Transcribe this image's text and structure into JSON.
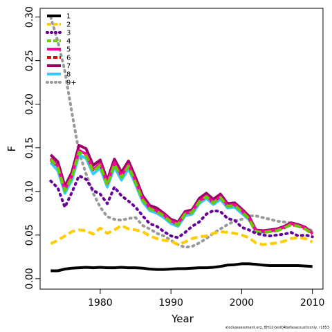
{
  "chart_data": {
    "type": "line",
    "xlabel": "Year",
    "ylabel": "F",
    "xlim": [
      1971.5,
      2011.5
    ],
    "ylim": [
      -0.012,
      0.31
    ],
    "x_ticks": [
      1980,
      1990,
      2000,
      2010
    ],
    "y_ticks": [
      0.0,
      0.05,
      0.1,
      0.15,
      0.2,
      0.25,
      0.3
    ],
    "y_tick_labels": [
      "0.00",
      "0.05",
      "0.10",
      "0.15",
      "0.20",
      "0.25",
      "0.30"
    ],
    "grid": false,
    "legend_position": "top-left",
    "x": [
      1973,
      1974,
      1975,
      1976,
      1977,
      1978,
      1979,
      1980,
      1981,
      1982,
      1983,
      1984,
      1985,
      1986,
      1987,
      1988,
      1989,
      1990,
      1991,
      1992,
      1993,
      1994,
      1995,
      1996,
      1997,
      1998,
      1999,
      2000,
      2001,
      2002,
      2003,
      2004,
      2005,
      2006,
      2007,
      2008,
      2009,
      2010
    ],
    "series": [
      {
        "name": "1",
        "color": "#000000",
        "dash": "solid",
        "values": [
          0.009,
          0.009,
          0.011,
          0.012,
          0.0125,
          0.013,
          0.0125,
          0.013,
          0.0125,
          0.0125,
          0.013,
          0.0125,
          0.0125,
          0.012,
          0.011,
          0.0105,
          0.0105,
          0.011,
          0.0115,
          0.0115,
          0.012,
          0.0125,
          0.0125,
          0.013,
          0.014,
          0.0155,
          0.016,
          0.017,
          0.017,
          0.0165,
          0.0155,
          0.015,
          0.015,
          0.015,
          0.015,
          0.015,
          0.0145,
          0.014
        ]
      },
      {
        "name": "2",
        "color": "#ffcc00",
        "dash": "dashed",
        "values": [
          0.04,
          0.044,
          0.049,
          0.054,
          0.056,
          0.055,
          0.051,
          0.058,
          0.052,
          0.056,
          0.061,
          0.057,
          0.056,
          0.054,
          0.049,
          0.046,
          0.044,
          0.043,
          0.039,
          0.042,
          0.046,
          0.048,
          0.049,
          0.052,
          0.054,
          0.053,
          0.052,
          0.05,
          0.047,
          0.041,
          0.039,
          0.04,
          0.041,
          0.043,
          0.046,
          0.047,
          0.046,
          0.042
        ]
      },
      {
        "name": "3",
        "color": "#660099",
        "dash": "dotted",
        "values": [
          0.112,
          0.104,
          0.082,
          0.099,
          0.118,
          0.114,
          0.101,
          0.097,
          0.086,
          0.105,
          0.095,
          0.089,
          0.082,
          0.072,
          0.063,
          0.06,
          0.054,
          0.049,
          0.047,
          0.053,
          0.06,
          0.065,
          0.074,
          0.078,
          0.077,
          0.069,
          0.067,
          0.059,
          0.056,
          0.052,
          0.05,
          0.049,
          0.05,
          0.051,
          0.053,
          0.049,
          0.05,
          0.048
        ]
      },
      {
        "name": "4",
        "color": "#66cc00",
        "dash": "dashed",
        "values": [
          0.137,
          0.127,
          0.101,
          0.116,
          0.145,
          0.141,
          0.123,
          0.13,
          0.107,
          0.131,
          0.116,
          0.129,
          0.11,
          0.09,
          0.08,
          0.077,
          0.072,
          0.065,
          0.062,
          0.074,
          0.076,
          0.088,
          0.094,
          0.087,
          0.093,
          0.083,
          0.084,
          0.077,
          0.069,
          0.054,
          0.053,
          0.054,
          0.055,
          0.058,
          0.062,
          0.06,
          0.057,
          0.051
        ]
      },
      {
        "name": "5",
        "color": "#ff0099",
        "dash": "solid",
        "values": [
          0.138,
          0.129,
          0.102,
          0.118,
          0.147,
          0.143,
          0.125,
          0.132,
          0.109,
          0.133,
          0.118,
          0.131,
          0.112,
          0.092,
          0.081,
          0.078,
          0.073,
          0.066,
          0.063,
          0.075,
          0.077,
          0.089,
          0.095,
          0.088,
          0.094,
          0.084,
          0.085,
          0.078,
          0.07,
          0.055,
          0.054,
          0.055,
          0.056,
          0.059,
          0.063,
          0.061,
          0.058,
          0.052
        ]
      },
      {
        "name": "6",
        "color": "#ee0000",
        "dash": "dashed",
        "values": [
          0.136,
          0.128,
          0.101,
          0.117,
          0.146,
          0.142,
          0.124,
          0.131,
          0.108,
          0.132,
          0.117,
          0.13,
          0.111,
          0.091,
          0.08,
          0.077,
          0.072,
          0.065,
          0.062,
          0.074,
          0.076,
          0.088,
          0.094,
          0.087,
          0.093,
          0.083,
          0.084,
          0.077,
          0.069,
          0.054,
          0.053,
          0.054,
          0.055,
          0.058,
          0.062,
          0.06,
          0.057,
          0.051
        ]
      },
      {
        "name": "7",
        "color": "#990066",
        "dash": "solid",
        "values": [
          0.142,
          0.134,
          0.106,
          0.122,
          0.153,
          0.149,
          0.13,
          0.136,
          0.113,
          0.137,
          0.122,
          0.135,
          0.116,
          0.095,
          0.084,
          0.081,
          0.075,
          0.068,
          0.065,
          0.077,
          0.079,
          0.092,
          0.098,
          0.091,
          0.097,
          0.086,
          0.087,
          0.08,
          0.072,
          0.056,
          0.055,
          0.056,
          0.057,
          0.06,
          0.064,
          0.062,
          0.059,
          0.052
        ]
      },
      {
        "name": "8",
        "color": "#33ccff",
        "dash": "solid",
        "values": [
          0.133,
          0.124,
          0.098,
          0.113,
          0.142,
          0.138,
          0.12,
          0.127,
          0.105,
          0.128,
          0.113,
          0.126,
          0.108,
          0.088,
          0.078,
          0.075,
          0.07,
          0.063,
          0.06,
          0.072,
          0.074,
          0.086,
          0.092,
          0.085,
          0.091,
          0.081,
          0.082,
          0.075,
          0.068,
          0.054,
          0.053,
          0.054,
          0.056,
          0.059,
          0.064,
          0.062,
          0.058,
          0.053
        ]
      },
      {
        "name": "9+",
        "color": "#999999",
        "dash": "dotted",
        "values": [
          0.3,
          0.272,
          0.238,
          0.19,
          0.145,
          0.12,
          0.098,
          0.082,
          0.071,
          0.068,
          0.067,
          0.069,
          0.07,
          0.061,
          0.057,
          0.052,
          0.049,
          0.044,
          0.039,
          0.036,
          0.037,
          0.041,
          0.046,
          0.052,
          0.057,
          0.062,
          0.066,
          0.068,
          0.072,
          0.072,
          0.07,
          0.068,
          0.066,
          0.065,
          0.064,
          0.061,
          0.058,
          0.055
        ]
      }
    ]
  },
  "footnote": "stockassessment.org, BH12-test04befasacousticonly, r1853"
}
